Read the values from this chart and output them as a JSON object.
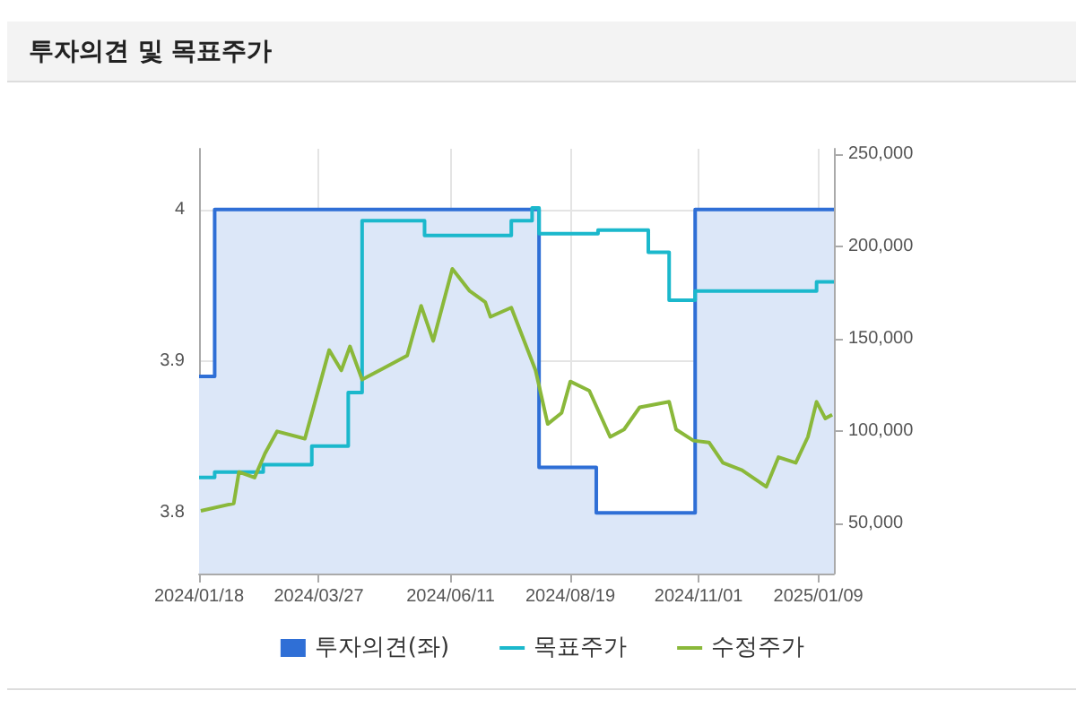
{
  "chart_data": {
    "type": "line",
    "title": "투자의견 및 목표주가",
    "xlim": [
      "2024-01-18",
      "2025-01-18"
    ],
    "xticks": [
      {
        "value": "2024-01-18",
        "label": "2024/01/18"
      },
      {
        "value": "2024-03-27",
        "label": "2024/03/27"
      },
      {
        "value": "2024-06-11",
        "label": "2024/06/11"
      },
      {
        "value": "2024-08-19",
        "label": "2024/08/19"
      },
      {
        "value": "2024-11-01",
        "label": "2024/11/01"
      },
      {
        "value": "2025-01-09",
        "label": "2025/01/09"
      }
    ],
    "ylim": [
      3.76,
      4.04
    ],
    "yticks": [
      3.8,
      3.9,
      4
    ],
    "y2lim": [
      23000,
      253000
    ],
    "y2ticks": [
      {
        "value": 50000,
        "label": "50,000"
      },
      {
        "value": 100000,
        "label": "100,000"
      },
      {
        "value": 150000,
        "label": "150,000"
      },
      {
        "value": 200000,
        "label": "200,000"
      },
      {
        "value": 250000,
        "label": "250,000"
      }
    ],
    "grid": true,
    "legend": "bottom",
    "marker": "none",
    "line_style": "solid",
    "series": [
      {
        "name": "투자의견(좌)",
        "type": "area",
        "color": "#2f6fd6",
        "x": [
          "2024-01-18",
          "2024-01-27",
          "2024-01-27",
          "2024-08-01",
          "2024-08-01",
          "2024-09-03",
          "2024-09-03",
          "2024-10-30",
          "2024-10-30",
          "2025-01-18"
        ],
        "values": [
          3.89,
          3.89,
          4.0,
          4.0,
          3.83,
          3.83,
          3.8,
          3.8,
          4.0,
          4.0
        ]
      },
      {
        "name": "목표주가",
        "type": "step",
        "axis": "y2",
        "color": "#1bb8cc",
        "x": [
          "2024-01-18",
          "2024-01-27",
          "2024-02-24",
          "2024-03-23",
          "2024-04-13",
          "2024-04-21",
          "2024-05-27",
          "2024-07-16",
          "2024-07-28",
          "2024-08-01",
          "2024-09-04",
          "2024-10-03",
          "2024-10-15",
          "2024-10-30",
          "2025-01-08",
          "2025-01-18"
        ],
        "values": [
          75000,
          78000,
          82000,
          92000,
          121000,
          214000,
          206000,
          214000,
          221000,
          207000,
          209000,
          197000,
          171000,
          176000,
          181000,
          181000
        ]
      },
      {
        "name": "수정주가",
        "axis": "y2",
        "color": "#8ab83a",
        "x": [
          "2024-01-19",
          "2024-02-07",
          "2024-02-10",
          "2024-02-19",
          "2024-02-25",
          "2024-03-03",
          "2024-03-19",
          "2024-03-24",
          "2024-04-02",
          "2024-04-09",
          "2024-04-14",
          "2024-04-21",
          "2024-05-03",
          "2024-05-17",
          "2024-05-25",
          "2024-06-01",
          "2024-06-12",
          "2024-06-22",
          "2024-07-01",
          "2024-07-04",
          "2024-07-16",
          "2024-07-30",
          "2024-08-06",
          "2024-08-14",
          "2024-08-19",
          "2024-08-30",
          "2024-09-11",
          "2024-09-19",
          "2024-09-28",
          "2024-10-15",
          "2024-10-19",
          "2024-10-29",
          "2024-11-07",
          "2024-11-15",
          "2024-11-26",
          "2024-12-10",
          "2024-12-17",
          "2024-12-27",
          "2025-01-03",
          "2025-01-08",
          "2025-01-13",
          "2025-01-17"
        ],
        "values": [
          57000,
          61000,
          78000,
          75000,
          88000,
          100000,
          96000,
          113000,
          144000,
          133000,
          146000,
          128000,
          134000,
          141000,
          168000,
          149000,
          188000,
          176000,
          170000,
          162000,
          167000,
          133000,
          104000,
          110000,
          127000,
          122000,
          97000,
          101000,
          113000,
          116000,
          101000,
          95000,
          94000,
          83000,
          79000,
          70000,
          86000,
          83000,
          97000,
          116000,
          107000,
          109000
        ]
      }
    ]
  }
}
